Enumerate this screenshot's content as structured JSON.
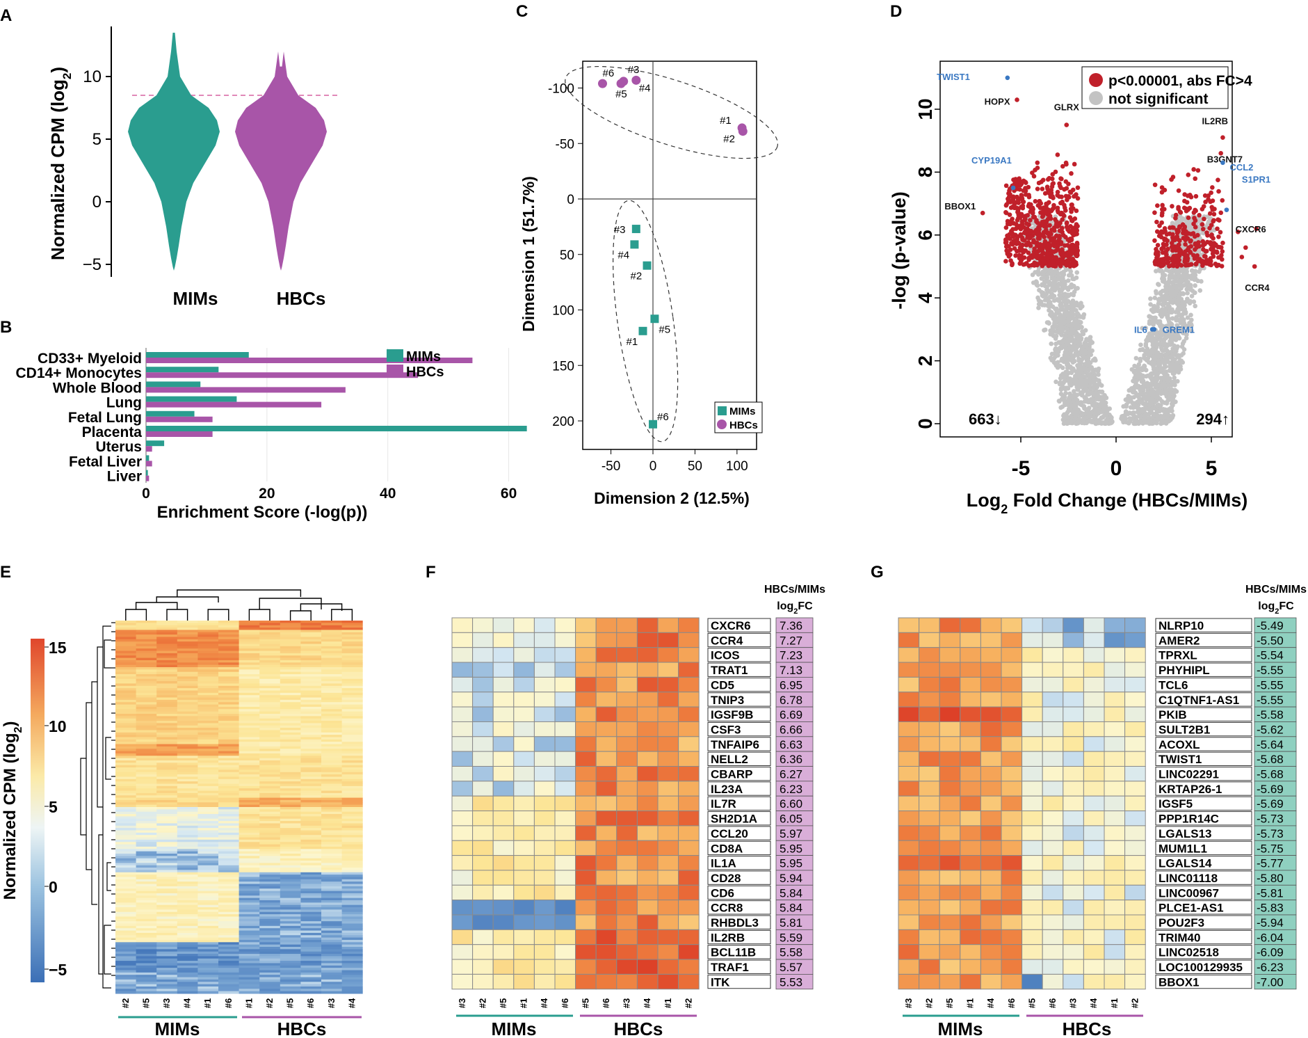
{
  "colors": {
    "mims": "#2a9d8f",
    "hbcs": "#a855a8",
    "sig": "#c0202a",
    "ns": "#c3c3c3",
    "blue_label": "#3a78c2",
    "fc_up_bg": "#d9aed8",
    "fc_down_bg": "#8fd0c0"
  },
  "groups": {
    "mims": "MIMs",
    "hbcs": "HBCs"
  },
  "chart_data": [
    {
      "panel": "A",
      "type": "violin",
      "title": "",
      "ylabel": "Normalized CPM (log2)",
      "categories": [
        "MIMs",
        "HBCs"
      ],
      "ylim": [
        -6,
        14
      ],
      "yticks": [
        -5,
        0,
        5,
        10
      ],
      "threshold_line": 8.5
    },
    {
      "panel": "B",
      "type": "bar",
      "orientation": "horizontal",
      "xlabel": "Enrichment Score (-log(p))",
      "xlim": [
        0,
        65
      ],
      "xticks": [
        0,
        20,
        40,
        60
      ],
      "categories": [
        "CD33+ Myeloid",
        "CD14+ Monocytes",
        "Whole Blood",
        "Lung",
        "Fetal Lung",
        "Placenta",
        "Uterus",
        "Fetal Liver",
        "Liver"
      ],
      "series": [
        {
          "name": "MIMs",
          "values": [
            17,
            12,
            9,
            15,
            8,
            63,
            3,
            0.5,
            0.3
          ]
        },
        {
          "name": "HBCs",
          "values": [
            54,
            45,
            33,
            29,
            11,
            11,
            1,
            1,
            0.5
          ]
        }
      ],
      "legend": "top-right"
    },
    {
      "panel": "C",
      "type": "scatter",
      "xlabel": "Dimension 2 (12.5%)",
      "ylabel": "Dimension 1 (51.7%)",
      "xlim": [
        -65,
        112
      ],
      "ylim": [
        -125,
        212
      ],
      "y_inverted": true,
      "xticks": [
        -50,
        0,
        50,
        100
      ],
      "yticks": [
        -100,
        -50,
        0,
        50,
        100,
        150,
        200
      ],
      "series": [
        {
          "name": "MIMs",
          "shape": "square",
          "points": [
            {
              "x": -20,
              "y": 27,
              "label": "#3"
            },
            {
              "x": -22,
              "y": 41,
              "label": "#4"
            },
            {
              "x": -7,
              "y": 60,
              "label": "#2"
            },
            {
              "x": 2,
              "y": 108,
              "label": "#5"
            },
            {
              "x": -12,
              "y": 119,
              "label": "#1"
            },
            {
              "x": 0,
              "y": 203,
              "label": "#6"
            }
          ]
        },
        {
          "name": "HBCs",
          "shape": "circle",
          "points": [
            {
              "x": -60,
              "y": -104,
              "label": "#6"
            },
            {
              "x": -35,
              "y": -106,
              "label": "#3"
            },
            {
              "x": -38,
              "y": -104,
              "label": "#5"
            },
            {
              "x": -20,
              "y": -107,
              "label": "#4"
            },
            {
              "x": 106,
              "y": -64,
              "label": "#1"
            },
            {
              "x": 107,
              "y": -61,
              "label": "#2"
            }
          ]
        }
      ],
      "legend": "bottom-right"
    },
    {
      "panel": "D",
      "type": "scatter",
      "subtype": "volcano",
      "xlabel": "Log2 Fold Change (HBCs/MIMs)",
      "ylabel": "-log (p-value)",
      "xlim": [
        -7.5,
        7.5
      ],
      "ylim": [
        -0.3,
        11.5
      ],
      "xticks": [
        -5,
        0,
        5
      ],
      "yticks": [
        0,
        2,
        4,
        6,
        8,
        10
      ],
      "legend": [
        "p<0.00001, abs FC>4",
        "not significant"
      ],
      "count_down": "663↓",
      "count_up": "294↑",
      "labeled_genes": [
        {
          "gene": "TWIST1",
          "x": -5.7,
          "y": 11.0,
          "blue": true
        },
        {
          "gene": "HOPX",
          "x": -5.2,
          "y": 10.3,
          "blue": false
        },
        {
          "gene": "GLRX",
          "x": -2.6,
          "y": 9.5,
          "blue": false
        },
        {
          "gene": "CYP19A1",
          "x": -5.4,
          "y": 7.5,
          "blue": true
        },
        {
          "gene": "BBOX1",
          "x": -7.0,
          "y": 6.7,
          "blue": false
        },
        {
          "gene": "IL2RB",
          "x": 5.6,
          "y": 9.1,
          "blue": false
        },
        {
          "gene": "B3GNT7",
          "x": 5.5,
          "y": 8.6,
          "blue": false
        },
        {
          "gene": "CCL2",
          "x": 5.6,
          "y": 8.3,
          "blue": true
        },
        {
          "gene": "S1PR1",
          "x": 5.8,
          "y": 6.8,
          "blue": true
        },
        {
          "gene": "CXCR6",
          "x": 7.36,
          "y": 6.2,
          "blue": false
        },
        {
          "gene": "CCR4",
          "x": 7.27,
          "y": 5.0,
          "blue": false
        },
        {
          "gene": "IL6",
          "x": 1.9,
          "y": 3.0,
          "blue": true
        },
        {
          "gene": "GREM1",
          "x": 2.0,
          "y": 3.0,
          "blue": true
        }
      ]
    },
    {
      "panel": "E",
      "type": "heatmap",
      "colorbar_label": "Normalized CPM (log2)",
      "colorbar_ticks": [
        15,
        10,
        5,
        0,
        -5
      ],
      "columns": [
        "#2",
        "#5",
        "#3",
        "#4",
        "#1",
        "#6",
        "#1",
        "#2",
        "#5",
        "#6",
        "#3",
        "#4"
      ]
    },
    {
      "panel": "F",
      "type": "heatmap",
      "fc_header_1": "HBCs/MIMs",
      "fc_header_2": "log2FC",
      "columns": [
        "#3",
        "#2",
        "#5",
        "#1",
        "#4",
        "#6",
        "#5",
        "#6",
        "#3",
        "#4",
        "#1",
        "#2"
      ],
      "genes": [
        "CXCR6",
        "CCR4",
        "ICOS",
        "TRAT1",
        "CD5",
        "TNIP3",
        "IGSF9B",
        "CSF3",
        "TNFAIP6",
        "NELL2",
        "CBARP",
        "IL23A",
        "IL7R",
        "SH2D1A",
        "CCL20",
        "CD8A",
        "IL1A",
        "CD28",
        "CD6",
        "CCR8",
        "RHBDL3",
        "IL2RB",
        "BCL11B",
        "TRAF1",
        "ITK"
      ],
      "log2fc": [
        "7.36",
        "7.27",
        "7.23",
        "7.13",
        "6.95",
        "6.78",
        "6.69",
        "6.66",
        "6.63",
        "6.36",
        "6.27",
        "6.23",
        "6.60",
        "6.05",
        "5.97",
        "5.95",
        "5.95",
        "5.94",
        "5.84",
        "5.84",
        "5.81",
        "5.59",
        "5.58",
        "5.57",
        "5.53"
      ]
    },
    {
      "panel": "G",
      "type": "heatmap",
      "fc_header_1": "HBCs/MIMs",
      "fc_header_2": "log2FC",
      "columns": [
        "#3",
        "#2",
        "#5",
        "#1",
        "#4",
        "#6",
        "#5",
        "#6",
        "#3",
        "#4",
        "#1",
        "#2"
      ],
      "genes": [
        "NLRP10",
        "AMER2",
        "TPRXL",
        "PHYHIPL",
        "TCL6",
        "C1QTNF1-AS1",
        "PKIB",
        "SULT2B1",
        "ACOXL",
        "TWIST1",
        "LINC02291",
        "KRTAP26-1",
        "IGSF5",
        "PPP1R14C",
        "LGALS13",
        "MUM1L1",
        "LGALS14",
        "LINC01118",
        "LINC00967",
        "PLCE1-AS1",
        "POU2F3",
        "TRIM40",
        "LINC02518",
        "LOC100129935",
        "BBOX1"
      ],
      "log2fc": [
        "-5.49",
        "-5.50",
        "-5.54",
        "-5.55",
        "-5.55",
        "-5.55",
        "-5.58",
        "-5.62",
        "-5.64",
        "-5.68",
        "-5.68",
        "-5.69",
        "-5.69",
        "-5.73",
        "-5.73",
        "-5.75",
        "-5.77",
        "-5.80",
        "-5.81",
        "-5.83",
        "-5.94",
        "-6.04",
        "-6.09",
        "-6.23",
        "-7.00"
      ]
    }
  ],
  "panel_letters": [
    "A",
    "B",
    "C",
    "D",
    "E",
    "F",
    "G"
  ]
}
